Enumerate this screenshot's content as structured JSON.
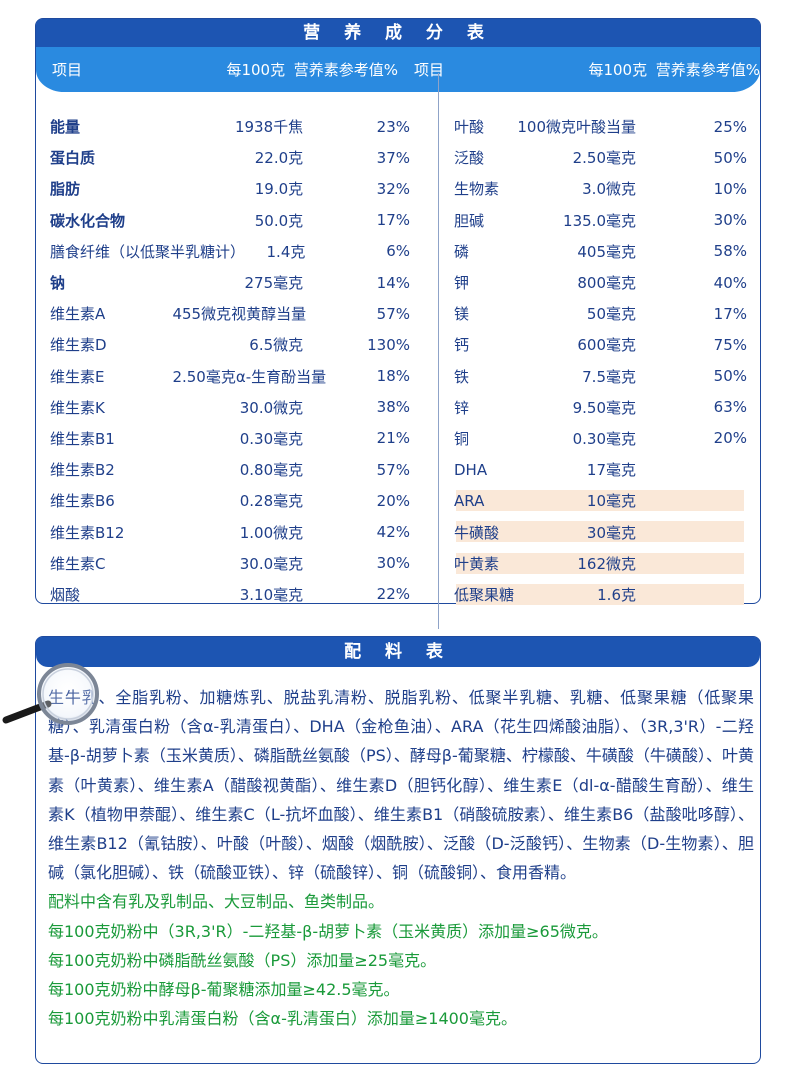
{
  "nutrition": {
    "title": "营 养 成 分 表",
    "headers": {
      "item": "项目",
      "per100": "每100克",
      "nrv": "营养素参考值%"
    },
    "left_rows": [
      {
        "name": "能量",
        "amount": "1938千焦",
        "nrv": "23%",
        "bold": true
      },
      {
        "name": "蛋白质",
        "amount": "22.0克",
        "nrv": "37%",
        "bold": true
      },
      {
        "name": "脂肪",
        "amount": "19.0克",
        "nrv": "32%",
        "bold": true
      },
      {
        "name": "碳水化合物",
        "amount": "50.0克",
        "nrv": "17%",
        "bold": true
      },
      {
        "name": "膳食纤维（以低聚半乳糖计）",
        "amount": "1.4克",
        "nrv": "6%",
        "bold": false
      },
      {
        "name": "钠",
        "amount": "275毫克",
        "nrv": "14%",
        "bold": true
      },
      {
        "name": "维生素A",
        "amount": "455微克视黄醇当量",
        "nrv": "57%",
        "bold": false
      },
      {
        "name": "维生素D",
        "amount": "6.5微克",
        "nrv": "130%",
        "bold": false
      },
      {
        "name": "维生素E",
        "amount": "2.50毫克α-生育酚当量",
        "nrv": "18%",
        "bold": false
      },
      {
        "name": "维生素K",
        "amount": "30.0微克",
        "nrv": "38%",
        "bold": false
      },
      {
        "name": "维生素B1",
        "amount": "0.30毫克",
        "nrv": "21%",
        "bold": false
      },
      {
        "name": "维生素B2",
        "amount": "0.80毫克",
        "nrv": "57%",
        "bold": false
      },
      {
        "name": "维生素B6",
        "amount": "0.28毫克",
        "nrv": "20%",
        "bold": false
      },
      {
        "name": "维生素B12",
        "amount": "1.00微克",
        "nrv": "42%",
        "bold": false
      },
      {
        "name": "维生素C",
        "amount": "30.0毫克",
        "nrv": "30%",
        "bold": false
      },
      {
        "name": "烟酸",
        "amount": "3.10毫克",
        "nrv": "22%",
        "bold": false
      }
    ],
    "right_rows": [
      {
        "name": "叶酸",
        "amount": "100微克叶酸当量",
        "nrv": "25%",
        "highlight": false
      },
      {
        "name": "泛酸",
        "amount": "2.50毫克",
        "nrv": "50%",
        "highlight": false
      },
      {
        "name": "生物素",
        "amount": "3.0微克",
        "nrv": "10%",
        "highlight": false
      },
      {
        "name": "胆碱",
        "amount": "135.0毫克",
        "nrv": "30%",
        "highlight": false
      },
      {
        "name": "磷",
        "amount": "405毫克",
        "nrv": "58%",
        "highlight": false
      },
      {
        "name": "钾",
        "amount": "800毫克",
        "nrv": "40%",
        "highlight": false
      },
      {
        "name": "镁",
        "amount": "50毫克",
        "nrv": "17%",
        "highlight": false
      },
      {
        "name": "钙",
        "amount": "600毫克",
        "nrv": "75%",
        "highlight": false
      },
      {
        "name": "铁",
        "amount": "7.5毫克",
        "nrv": "50%",
        "highlight": false
      },
      {
        "name": "锌",
        "amount": "9.50毫克",
        "nrv": "63%",
        "highlight": false
      },
      {
        "name": "铜",
        "amount": "0.30毫克",
        "nrv": "20%",
        "highlight": false
      },
      {
        "name": "DHA",
        "amount": "17毫克",
        "nrv": "",
        "highlight": false
      },
      {
        "name": "ARA",
        "amount": "10毫克",
        "nrv": "",
        "highlight": true
      },
      {
        "name": "牛磺酸",
        "amount": "30毫克",
        "nrv": "",
        "highlight": true
      },
      {
        "name": "叶黄素",
        "amount": "162微克",
        "nrv": "",
        "highlight": true
      },
      {
        "name": "低聚果糖",
        "amount": "1.6克",
        "nrv": "",
        "highlight": true
      }
    ]
  },
  "ingredients": {
    "title": "配 料 表",
    "text": "生牛乳、全脂乳粉、加糖炼乳、脱盐乳清粉、脱脂乳粉、低聚半乳糖、乳糖、低聚果糖（低聚果糖）、乳清蛋白粉（含α-乳清蛋白）、DHA（金枪鱼油）、ARA（花生四烯酸油脂）、（3R,3'R）-二羟基-β-胡萝卜素（玉米黄质）、磷脂酰丝氨酸（PS）、酵母β-葡聚糖、柠檬酸、牛磺酸（牛磺酸）、叶黄素（叶黄素）、维生素A（醋酸视黄酯）、维生素D（胆钙化醇）、维生素E（dl-α-醋酸生育酚）、维生素K（植物甲萘醌）、维生素C（L-抗坏血酸）、维生素B1（硝酸硫胺素）、维生素B6（盐酸吡哆醇）、维生素B12（氰钴胺）、叶酸（叶酸）、烟酸（烟酰胺）、泛酸（D-泛酸钙）、生物素（D-生物素）、胆碱（氯化胆碱）、铁（硫酸亚铁）、锌（硫酸锌）、铜（硫酸铜）、食用香精。",
    "notes": [
      "配料中含有乳及乳制品、大豆制品、鱼类制品。",
      "每100克奶粉中（3R,3'R）-二羟基-β-胡萝卜素（玉米黄质）添加量≥65微克。",
      "每100克奶粉中磷脂酰丝氨酸（PS）添加量≥25毫克。",
      "每100克奶粉中酵母β-葡聚糖添加量≥42.5毫克。",
      "每100克奶粉中乳清蛋白粉（含α-乳清蛋白）添加量≥1400毫克。"
    ]
  },
  "colors": {
    "banner": "#1d55b2",
    "header": "#2a8ae0",
    "text": "#1f3f8a",
    "note_green": "#1a9a3a",
    "highlight": "#fae8d8"
  },
  "icons": [
    "magnifier-icon"
  ]
}
